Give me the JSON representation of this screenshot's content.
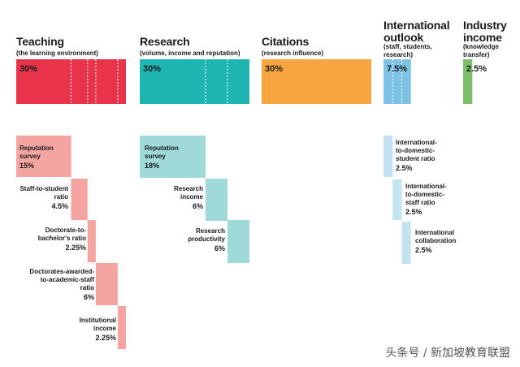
{
  "chart_data": {
    "type": "bar",
    "categories": [
      {
        "name": "Teaching",
        "subtitle": "(the learning environment)",
        "value": 30,
        "label": "30%",
        "color": "#e8334a",
        "components": [
          {
            "name": "Reputation survey",
            "value": 15,
            "label": "15%"
          },
          {
            "name": "Staff-to-student ratio",
            "value": 4.5,
            "label": "4.5%"
          },
          {
            "name": "Doctorate-to-bachelor's ratio",
            "value": 2.25,
            "label": "2.25%"
          },
          {
            "name": "Doctorates-awarded-to-academic-staff ratio",
            "value": 6,
            "label": "6%"
          },
          {
            "name": "Institutional income",
            "value": 2.25,
            "label": "2.25%"
          }
        ]
      },
      {
        "name": "Research",
        "subtitle": "(volume, income and reputation)",
        "value": 30,
        "label": "30%",
        "color": "#1fb5b0",
        "components": [
          {
            "name": "Reputation survey",
            "value": 18,
            "label": "18%"
          },
          {
            "name": "Research income",
            "value": 6,
            "label": "6%"
          },
          {
            "name": "Research productivity",
            "value": 6,
            "label": "6%"
          }
        ]
      },
      {
        "name": "Citations",
        "subtitle": "(research influence)",
        "value": 30,
        "label": "30%",
        "color": "#f7a540",
        "components": []
      },
      {
        "name": "International outlook",
        "subtitle": "(staff, students, research)",
        "value": 7.5,
        "label": "7.5%",
        "color": "#7ec2e6",
        "components": [
          {
            "name": "International-to-domestic-student ratio",
            "value": 2.5,
            "label": "2.5%"
          },
          {
            "name": "International-to-domestic-staff ratio",
            "value": 2.5,
            "label": "2.5%"
          },
          {
            "name": "International collaboration",
            "value": 2.5,
            "label": "2.5%"
          }
        ]
      },
      {
        "name": "Industry income",
        "subtitle": "(knowledge transfer)",
        "value": 2.5,
        "label": "2.5%",
        "color": "#7cbf6a",
        "components": []
      }
    ]
  },
  "text": {
    "teaching_title": "Teaching",
    "teaching_sub": "(the learning environment)",
    "research_title": "Research",
    "research_sub": "(volume, income and reputation)",
    "citations_title": "Citations",
    "citations_sub": "(research influence)",
    "intl_title_1": "International",
    "intl_title_2": "outlook",
    "intl_sub_1": "(staff, students,",
    "intl_sub_2": "research)",
    "industry_title_1": "Industry",
    "industry_title_2": "income",
    "industry_sub_1": "(knowledge",
    "industry_sub_2": "transfer)",
    "t1a": "Reputation",
    "t1b": "survey",
    "t1v": "15%",
    "t2a": "Staff-to-student",
    "t2b": "ratio",
    "t2v": "4.5%",
    "t3a": "Doctorate-to-",
    "t3b": "bachelor's ratio",
    "t3v": "2.25%",
    "t4a": "Doctorates-awarded-",
    "t4b": "to-academic-staff",
    "t4c": "ratio",
    "t4v": "6%",
    "t5a": "Institutional",
    "t5b": "income",
    "t5v": "2.25%",
    "r1a": "Reputation",
    "r1b": "survey",
    "r1v": "18%",
    "r2a": "Research",
    "r2b": "income",
    "r2v": "6%",
    "r3a": "Research",
    "r3b": "productivity",
    "r3v": "6%",
    "i1a": "International-",
    "i1b": "to-domestic-",
    "i1c": "student ratio",
    "i1v": "2.5%",
    "i2a": "International-",
    "i2b": "to-domestic-",
    "i2c": "staff ratio",
    "i2v": "2.5%",
    "i3a": "International",
    "i3b": "collaboration",
    "i3v": "2.5%",
    "watermark": "头条号 / 新加坡教育联盟"
  },
  "colors": {
    "teaching": "#e8334a",
    "teaching_light": "#f4a5a2",
    "research": "#1fb5b0",
    "research_light": "#9fdad8",
    "citations": "#f7a540",
    "intl": "#7ec2e6",
    "intl_light": "#c3e3f1",
    "industry": "#7cbf6a"
  }
}
